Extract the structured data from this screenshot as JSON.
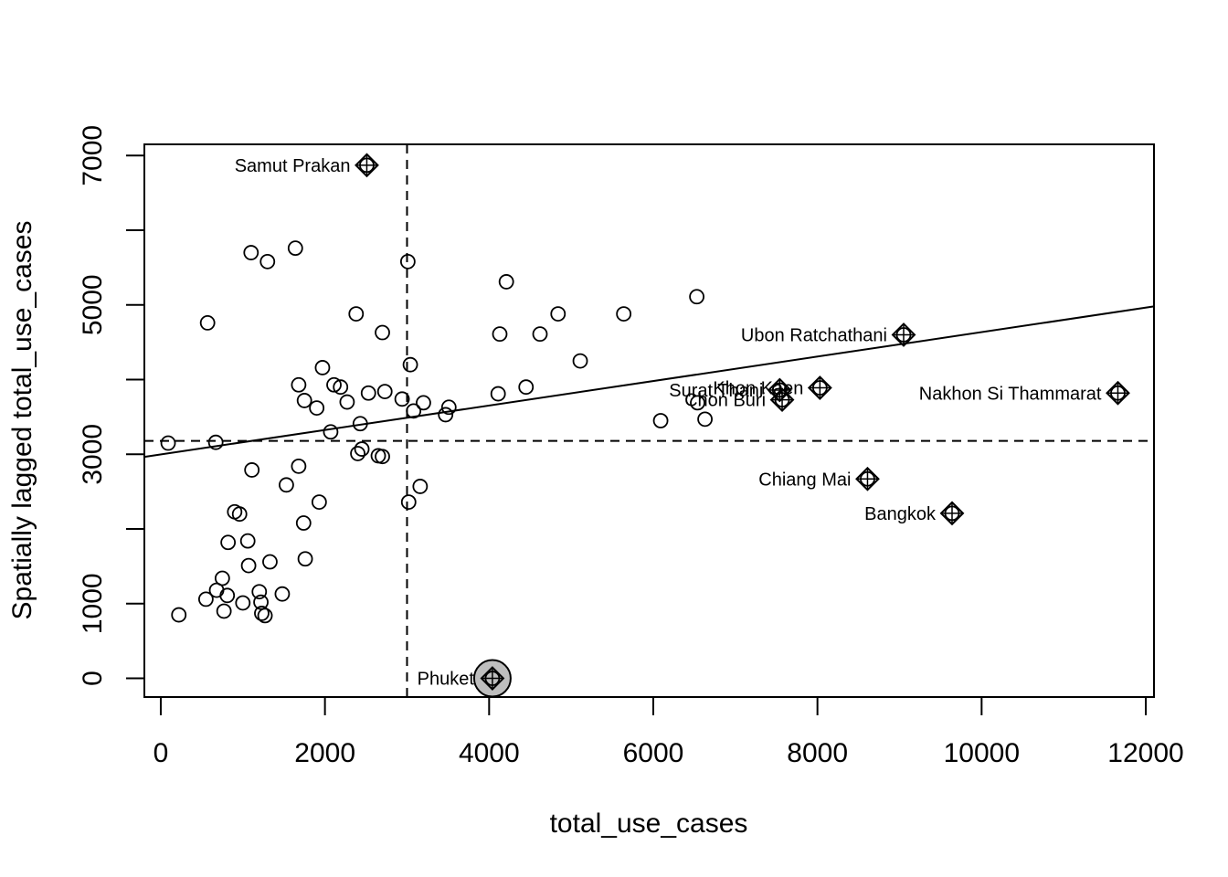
{
  "chart_data": {
    "type": "scatter",
    "title": "",
    "xlabel": "total_use_cases",
    "ylabel": "Spatially lagged total_use_cases",
    "xlim": [
      -200,
      12100
    ],
    "ylim": [
      -250,
      7150
    ],
    "xticks": [
      0,
      2000,
      4000,
      6000,
      8000,
      10000,
      12000
    ],
    "yticks": [
      0,
      1000,
      2000,
      3000,
      4000,
      5000,
      6000,
      7000
    ],
    "ytick_labels": [
      "0",
      "1000",
      "",
      "3000",
      "",
      "5000",
      "",
      "7000"
    ],
    "mean_lines": {
      "x": 3000,
      "y": 3180
    },
    "regression_line": {
      "intercept": 2998,
      "slope": 0.1638
    },
    "grid": false,
    "points": [
      {
        "x": 90,
        "y": 3150
      },
      {
        "x": 220,
        "y": 850
      },
      {
        "x": 550,
        "y": 1060
      },
      {
        "x": 570,
        "y": 4760
      },
      {
        "x": 670,
        "y": 3160
      },
      {
        "x": 680,
        "y": 1180
      },
      {
        "x": 750,
        "y": 1340
      },
      {
        "x": 770,
        "y": 900
      },
      {
        "x": 810,
        "y": 1110
      },
      {
        "x": 820,
        "y": 1820
      },
      {
        "x": 900,
        "y": 2230
      },
      {
        "x": 960,
        "y": 2200
      },
      {
        "x": 1000,
        "y": 1010
      },
      {
        "x": 1060,
        "y": 1840
      },
      {
        "x": 1070,
        "y": 1510
      },
      {
        "x": 1100,
        "y": 5700
      },
      {
        "x": 1110,
        "y": 2790
      },
      {
        "x": 1200,
        "y": 1160
      },
      {
        "x": 1220,
        "y": 1020
      },
      {
        "x": 1230,
        "y": 870
      },
      {
        "x": 1270,
        "y": 840
      },
      {
        "x": 1300,
        "y": 5580
      },
      {
        "x": 1330,
        "y": 1560
      },
      {
        "x": 1480,
        "y": 1130
      },
      {
        "x": 1530,
        "y": 2590
      },
      {
        "x": 1640,
        "y": 5760
      },
      {
        "x": 1680,
        "y": 3930
      },
      {
        "x": 1680,
        "y": 2840
      },
      {
        "x": 1740,
        "y": 2080
      },
      {
        "x": 1750,
        "y": 3720
      },
      {
        "x": 1760,
        "y": 1600
      },
      {
        "x": 1900,
        "y": 3620
      },
      {
        "x": 1930,
        "y": 2360
      },
      {
        "x": 1970,
        "y": 4160
      },
      {
        "x": 2070,
        "y": 3300
      },
      {
        "x": 2110,
        "y": 3930
      },
      {
        "x": 2190,
        "y": 3900
      },
      {
        "x": 2270,
        "y": 3700
      },
      {
        "x": 2380,
        "y": 4880
      },
      {
        "x": 2400,
        "y": 3010
      },
      {
        "x": 2430,
        "y": 3410
      },
      {
        "x": 2450,
        "y": 3070
      },
      {
        "x": 2530,
        "y": 3820
      },
      {
        "x": 2650,
        "y": 2980
      },
      {
        "x": 2700,
        "y": 2970
      },
      {
        "x": 2700,
        "y": 4630
      },
      {
        "x": 2730,
        "y": 3840
      },
      {
        "x": 2940,
        "y": 3740
      },
      {
        "x": 3010,
        "y": 5580
      },
      {
        "x": 3020,
        "y": 2360
      },
      {
        "x": 3040,
        "y": 4200
      },
      {
        "x": 3080,
        "y": 3580
      },
      {
        "x": 3160,
        "y": 2570
      },
      {
        "x": 3200,
        "y": 3690
      },
      {
        "x": 3470,
        "y": 3530
      },
      {
        "x": 3510,
        "y": 3630
      },
      {
        "x": 4110,
        "y": 3810
      },
      {
        "x": 4130,
        "y": 4610
      },
      {
        "x": 4210,
        "y": 5310
      },
      {
        "x": 4450,
        "y": 3900
      },
      {
        "x": 4620,
        "y": 4610
      },
      {
        "x": 4840,
        "y": 4880
      },
      {
        "x": 5110,
        "y": 4250
      },
      {
        "x": 5640,
        "y": 4880
      },
      {
        "x": 6090,
        "y": 3450
      },
      {
        "x": 6530,
        "y": 5110
      },
      {
        "x": 6540,
        "y": 3690
      },
      {
        "x": 6630,
        "y": 3470
      }
    ],
    "influential_points": [
      {
        "x": 2510,
        "y": 6870,
        "label": "Samut Prakan",
        "label_side": "left"
      },
      {
        "x": 9050,
        "y": 4600,
        "label": "Ubon Ratchathani",
        "label_side": "left"
      },
      {
        "x": 7540,
        "y": 3860,
        "label": "Surat Thani",
        "label_side": "left"
      },
      {
        "x": 8030,
        "y": 3890,
        "label": "Khon Kaen",
        "label_side": "left"
      },
      {
        "x": 7570,
        "y": 3730,
        "label": "Chon Buri",
        "label_side": "left"
      },
      {
        "x": 11660,
        "y": 3820,
        "label": "Nakhon Si Thammarat",
        "label_side": "left"
      },
      {
        "x": 8610,
        "y": 2670,
        "label": "Chiang Mai",
        "label_side": "left"
      },
      {
        "x": 9640,
        "y": 2210,
        "label": "Bangkok",
        "label_side": "left"
      },
      {
        "x": 4040,
        "y": 0,
        "label": "Phuket",
        "label_side": "left",
        "highlighted": true
      }
    ]
  }
}
